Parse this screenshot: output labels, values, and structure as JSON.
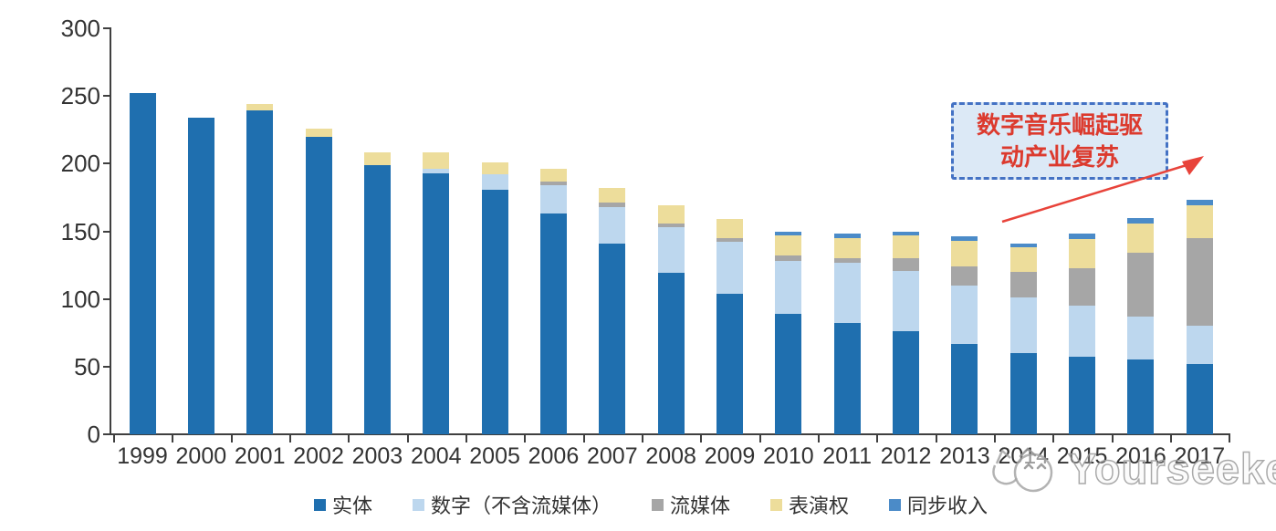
{
  "chart_data": {
    "type": "bar",
    "stacked": true,
    "title": "",
    "xlabel": "",
    "ylabel": "",
    "categories": [
      "1999",
      "2000",
      "2001",
      "2002",
      "2003",
      "2004",
      "2005",
      "2006",
      "2007",
      "2008",
      "2009",
      "2010",
      "2011",
      "2012",
      "2013",
      "2014",
      "2015",
      "2016",
      "2017"
    ],
    "series": [
      {
        "name": "实体",
        "color": "#1F6FAF",
        "values": [
          252,
          234,
          239,
          220,
          199,
          193,
          181,
          163,
          141,
          119,
          104,
          89,
          82,
          76,
          67,
          60,
          57,
          55,
          52
        ]
      },
      {
        "name": "数字（不含流媒体）",
        "color": "#BDD7EE",
        "values": [
          0,
          0,
          0,
          0,
          0,
          3,
          11,
          21,
          27,
          34,
          38,
          39,
          45,
          45,
          43,
          41,
          38,
          32,
          28
        ]
      },
      {
        "name": "流媒体",
        "color": "#A6A6A6",
        "values": [
          0,
          0,
          0,
          0,
          0,
          0,
          0,
          3,
          3,
          3,
          3,
          4,
          3,
          9,
          14,
          19,
          28,
          47,
          65
        ]
      },
      {
        "name": "表演权",
        "color": "#EDDD9B",
        "values": [
          0,
          0,
          5,
          6,
          9,
          12,
          9,
          9,
          11,
          13,
          14,
          15,
          15,
          17,
          19,
          18,
          21,
          22,
          24
        ]
      },
      {
        "name": "同步收入",
        "color": "#4B8BC8",
        "values": [
          0,
          0,
          0,
          0,
          0,
          0,
          0,
          0,
          0,
          0,
          0,
          3,
          3,
          3,
          3,
          3,
          4,
          4,
          4
        ]
      }
    ],
    "ylim": [
      0,
      300
    ],
    "yticks": [
      0,
      50,
      100,
      150,
      200,
      250,
      300
    ],
    "grid": false,
    "legend_position": "bottom"
  },
  "annotation": {
    "line1": "数字音乐崛起驱",
    "line2": "动产业复苏",
    "text_color": "#DC3A2E",
    "border_color": "#4472C4",
    "fill_color": "#DCE9F6",
    "arrow_color": "#E8433A"
  },
  "watermark": {
    "text": "Yourseeker",
    "icon": "cat-logo-icon",
    "color": "#9B9B9B"
  },
  "axis": {
    "color": "#3F3F3F",
    "label_color": "#333333"
  }
}
